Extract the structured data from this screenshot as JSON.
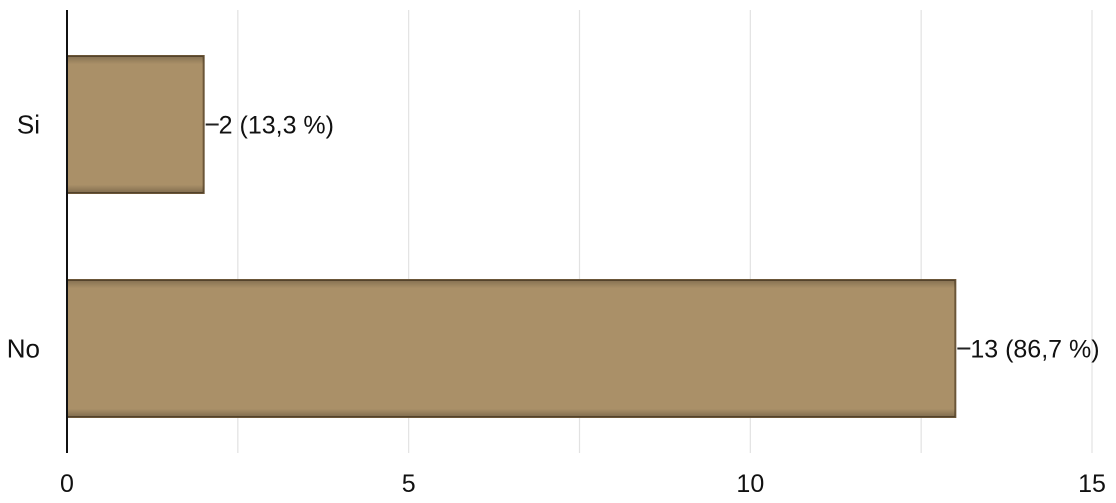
{
  "chart_data": {
    "type": "bar",
    "orientation": "horizontal",
    "categories": [
      "Si",
      "No"
    ],
    "values": [
      2,
      13
    ],
    "data_labels": [
      "2 (13,3 %)",
      "13 (86,7 %)"
    ],
    "xlim": [
      0,
      15
    ],
    "x_ticks": [
      0,
      5,
      10,
      15
    ],
    "x_tick_labels": [
      "0",
      "5",
      "10",
      "15"
    ],
    "grid": true,
    "minor_grid_step": 2.5,
    "bar_color": "#aa9068",
    "bar_edge_color": "#6b5638",
    "grid_color": "#e2e2e2",
    "axis_color": "#111111"
  }
}
